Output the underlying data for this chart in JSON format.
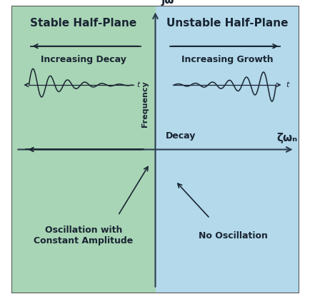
{
  "bg_left_color": "#a8d5b5",
  "bg_right_color": "#b3d9ea",
  "axis_color": "#2c3e50",
  "text_color": "#1a2533",
  "fig_bg": "#ffffff",
  "border_color": "#555555",
  "stable_label": "Stable Half-Plane",
  "unstable_label": "Unstable Half-Plane",
  "increasing_decay_label": "Increasing Decay",
  "increasing_growth_label": "Increasing Growth",
  "decay_label": "Decay",
  "no_osc_label": "No Oscillation",
  "osc_label": "Oscillation with\nConstant Amplitude",
  "frequency_label": "Frequency",
  "jw_label": "jω",
  "xaxis_label": "ζωₙ",
  "font_size_big": 11,
  "font_size_med": 9,
  "font_size_small": 8,
  "font_size_axis": 11
}
